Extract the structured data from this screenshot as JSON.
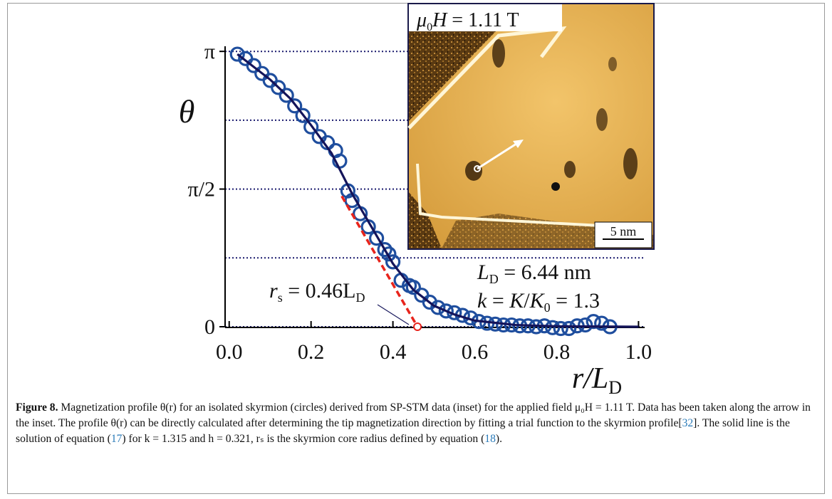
{
  "chart_data": {
    "type": "scatter",
    "xlim": [
      -0.01,
      1.015
    ],
    "ylim": [
      0,
      3.2
    ],
    "xticks": [
      {
        "value": 0,
        "label": "0.0"
      },
      0.2,
      0.4,
      0.6,
      0.8,
      {
        "value": 1,
        "label": "1.0"
      }
    ],
    "yticks": [
      {
        "value": 0,
        "label": "0"
      },
      {
        "value": 1.5708,
        "label": "π/2"
      },
      {
        "value": 3.1416,
        "label": "π"
      }
    ],
    "grid_yticks": [
      0,
      0.7854,
      1.5708,
      2.3562,
      3.1416
    ],
    "y_label": "θ",
    "x_label": [
      "r/L",
      "D"
    ],
    "series": [
      {
        "color": "#1f4e9e",
        "x": [
          0.02,
          0.04,
          0.06,
          0.08,
          0.1,
          0.12,
          0.14,
          0.16,
          0.18,
          0.2,
          0.22,
          0.24,
          0.26,
          0.27,
          0.29,
          0.3,
          0.32,
          0.34,
          0.36,
          0.38,
          0.39,
          0.4,
          0.42,
          0.44,
          0.45,
          0.47,
          0.49,
          0.51,
          0.53,
          0.55,
          0.57,
          0.59,
          0.61,
          0.63,
          0.65,
          0.67,
          0.69,
          0.71,
          0.73,
          0.75,
          0.77,
          0.79,
          0.81,
          0.83,
          0.85,
          0.87,
          0.89,
          0.91,
          0.93
        ],
        "values": [
          3.11,
          3.06,
          2.98,
          2.89,
          2.81,
          2.73,
          2.64,
          2.52,
          2.41,
          2.28,
          2.17,
          2.1,
          2.01,
          1.89,
          1.55,
          1.44,
          1.29,
          1.14,
          1.01,
          0.88,
          0.83,
          0.74,
          0.53,
          0.47,
          0.45,
          0.36,
          0.28,
          0.22,
          0.18,
          0.16,
          0.13,
          0.1,
          0.06,
          0.04,
          0.03,
          0.02,
          0.02,
          0.01,
          0.01,
          0,
          0.01,
          -0.01,
          -0.02,
          -0.02,
          0.01,
          0.02,
          0.06,
          0.04,
          0
        ]
      },
      {
        "type": "line",
        "color": "#14145a",
        "x": [
          0.02,
          0.1,
          0.15,
          0.2,
          0.25,
          0.3,
          0.35,
          0.4,
          0.45,
          0.5,
          0.55,
          0.6,
          0.7,
          0.8,
          1.0
        ],
        "values": [
          3.11,
          2.82,
          2.6,
          2.3,
          1.98,
          1.52,
          1.12,
          0.72,
          0.42,
          0.24,
          0.14,
          0.07,
          0.02,
          0.005,
          0
        ]
      },
      {
        "type": "dashed",
        "color": "#e8241c",
        "x": [
          0.275,
          0.46
        ],
        "values": [
          1.49,
          0
        ]
      }
    ],
    "annotations": {
      "rs": [
        "r",
        "s",
        " = 0.46L",
        "D"
      ],
      "ld": [
        "L",
        "D",
        " = 6.44 nm"
      ],
      "k": [
        "k",
        " = ",
        "K",
        "/",
        "K",
        "0",
        " = 1.3"
      ]
    },
    "inset": {
      "field": [
        "μ",
        "0",
        "H",
        " = 1.11 T"
      ],
      "scale_bar": "5 nm"
    }
  },
  "caption": {
    "label": "Figure 8.",
    "segments": [
      "Magnetization profile θ(r) for an isolated skyrmion (circles) derived from SP-STM data (inset) for the applied field μ₀H = 1.11 T. Data has been taken along the arrow in the inset. The profile θ(r) can be directly calculated after determining the tip magnetization direction by fitting a trial function to the skyrmion profile[",
      "32",
      "]. The solid line is the solution of equation (",
      "17",
      ") for k = 1.315 and h = 0.321, rₛ is the skyrmion core radius defined by equation (",
      "18",
      ")."
    ]
  }
}
